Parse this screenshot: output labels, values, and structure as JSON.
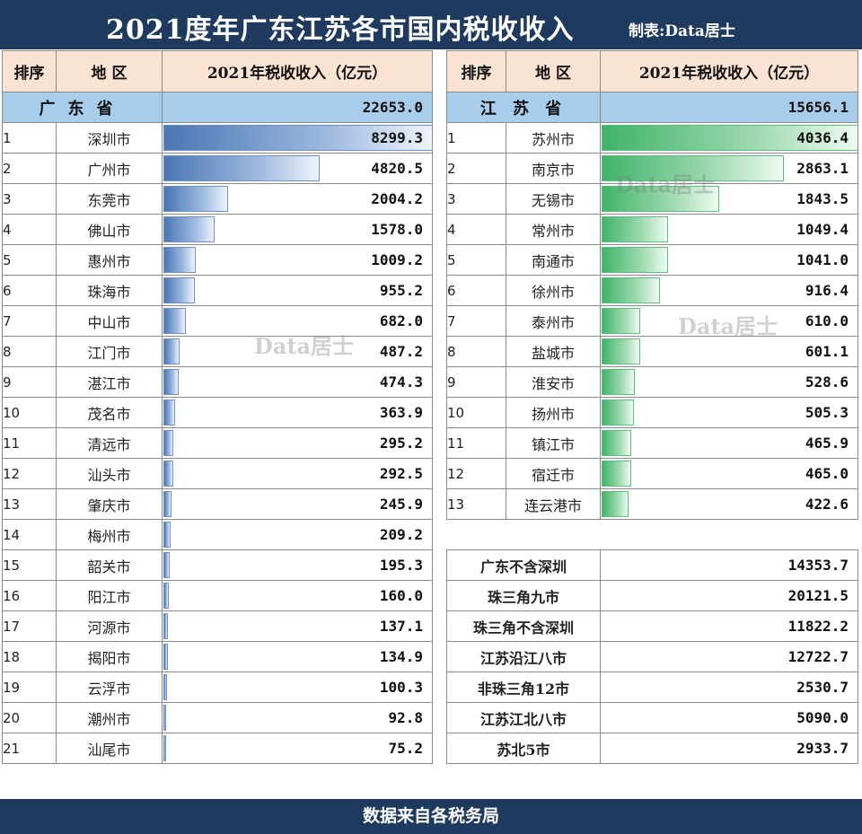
{
  "header": {
    "title": "2021度年广东江苏各市国内税收收入",
    "credit": "制表:Data居士"
  },
  "columns": {
    "rank": "排序",
    "region": "地 区",
    "value": "2021年税收收入（亿元）"
  },
  "footer": "数据来自各税务局",
  "watermark": "Data居士",
  "colors": {
    "header_bg": "#1f3a5f",
    "column_header_bg": "#fbe3d4",
    "province_row_bg": "#a7cdea",
    "guangdong_bar": "#4a76b4",
    "jiangsu_bar": "#3fb469"
  },
  "chart_data": [
    {
      "type": "bar",
      "province": "广东省",
      "province_total": "22653.0",
      "ranks": [
        "1",
        "2",
        "3",
        "4",
        "5",
        "6",
        "7",
        "8",
        "9",
        "10",
        "11",
        "12",
        "13",
        "14",
        "15",
        "16",
        "17",
        "18",
        "19",
        "20",
        "21"
      ],
      "categories": [
        "深圳市",
        "广州市",
        "东莞市",
        "佛山市",
        "惠州市",
        "珠海市",
        "中山市",
        "江门市",
        "湛江市",
        "茂名市",
        "清远市",
        "汕头市",
        "肇庆市",
        "梅州市",
        "韶关市",
        "阳江市",
        "河源市",
        "揭阳市",
        "云浮市",
        "潮州市",
        "汕尾市"
      ],
      "values": [
        8299.3,
        4820.5,
        2004.2,
        1578.0,
        1009.2,
        955.2,
        682.0,
        487.2,
        474.3,
        363.9,
        295.2,
        292.5,
        245.9,
        209.2,
        195.3,
        160.0,
        137.1,
        134.9,
        100.3,
        92.8,
        75.2
      ],
      "labels": [
        "8299.3",
        "4820.5",
        "2004.2",
        "1578.0",
        "1009.2",
        "955.2",
        "682.0",
        "487.2",
        "474.3",
        "363.9",
        "295.2",
        "292.5",
        "245.9",
        "209.2",
        "195.3",
        "160.0",
        "137.1",
        "134.9",
        "100.3",
        "92.8",
        "75.2"
      ],
      "xlim": [
        0,
        8299.3
      ]
    },
    {
      "type": "bar",
      "province": "江 苏 省",
      "province_total": "15656.1",
      "ranks": [
        "1",
        "2",
        "3",
        "4",
        "5",
        "6",
        "7",
        "8",
        "9",
        "10",
        "11",
        "12",
        "13"
      ],
      "categories": [
        "苏州市",
        "南京市",
        "无锡市",
        "常州市",
        "南通市",
        "徐州市",
        "泰州市",
        "盐城市",
        "淮安市",
        "扬州市",
        "镇江市",
        "宿迁市",
        "连云港市"
      ],
      "values": [
        4036.4,
        2863.1,
        1843.5,
        1049.4,
        1041.0,
        916.4,
        610.0,
        601.1,
        528.6,
        505.3,
        465.9,
        465.0,
        422.6
      ],
      "labels": [
        "4036.4",
        "2863.1",
        "1843.5",
        "1049.4",
        "1041.0",
        "916.4",
        "610.0",
        "601.1",
        "528.6",
        "505.3",
        "465.9",
        "465.0",
        "422.6"
      ],
      "xlim": [
        0,
        4036.4
      ]
    }
  ],
  "summary_rows": [
    {
      "label": "广东不含深圳",
      "value": "14353.7"
    },
    {
      "label": "珠三角九市",
      "value": "20121.5"
    },
    {
      "label": "珠三角不含深圳",
      "value": "11822.2"
    },
    {
      "label": "江苏沿江八市",
      "value": "12722.7"
    },
    {
      "label": "非珠三角12市",
      "value": "2530.7"
    },
    {
      "label": "江苏江北八市",
      "value": "5090.0"
    },
    {
      "label": "苏北5市",
      "value": "2933.7"
    }
  ]
}
